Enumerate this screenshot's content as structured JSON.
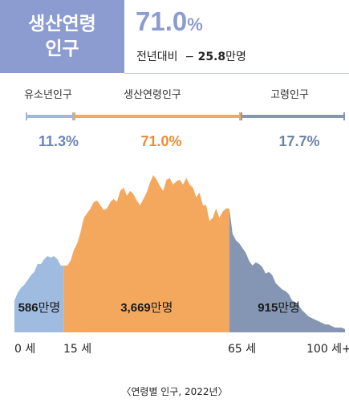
{
  "header": {
    "title": "생산연령\n인구",
    "percent_value": "71.0",
    "percent_unit": "%",
    "change_label": "전년대비",
    "change_sign": "−",
    "change_value": "25.8",
    "change_unit": "만명"
  },
  "segments": [
    {
      "name": "유소년인구",
      "percent": "11.3%",
      "count_num": "586",
      "count_unit": "만명",
      "color": "#9fbbe0"
    },
    {
      "name": "생산연령인구",
      "percent": "71.0%",
      "count_num": "3,669",
      "count_unit": "만명",
      "color": "#f4a85e"
    },
    {
      "name": "고령인구",
      "percent": "17.7%",
      "count_num": "915",
      "count_unit": "만명",
      "color": "#8496b3"
    }
  ],
  "colors": {
    "youth_bar": "#9fb7df",
    "working_bar": "#f4a85e",
    "elderly_bar": "#8497b5",
    "youth_text": "#6a85b8",
    "working_text": "#e98e3a",
    "elderly_text": "#6f83a6",
    "header_accent": "#8d9cd0"
  },
  "axis": {
    "ticks": [
      {
        "age": 0,
        "label": "0 세"
      },
      {
        "age": 15,
        "label": "15 세"
      },
      {
        "age": 65,
        "label": "65 세"
      },
      {
        "age": 100,
        "label": "100 세+"
      }
    ]
  },
  "source_note": "〈연령별 인구, 2022년〉",
  "chart_data": {
    "type": "area",
    "xlabel": "",
    "ylabel": "",
    "x_range": [
      0,
      100
    ],
    "series": [
      {
        "name": "유소년인구",
        "x": [
          0,
          1,
          2,
          3,
          4,
          5,
          6,
          7,
          8,
          9,
          10,
          11,
          12,
          13,
          14,
          15
        ],
        "y": [
          20,
          25,
          28,
          30,
          33,
          36,
          38,
          43,
          43,
          46,
          48,
          47,
          48,
          46,
          42,
          42
        ]
      },
      {
        "name": "생산연령인구",
        "x": [
          15,
          16,
          17,
          18,
          19,
          20,
          21,
          22,
          23,
          24,
          25,
          26,
          27,
          28,
          29,
          30,
          31,
          32,
          33,
          34,
          35,
          36,
          37,
          38,
          39,
          40,
          41,
          42,
          43,
          44,
          45,
          46,
          47,
          48,
          49,
          50,
          51,
          52,
          53,
          54,
          55,
          56,
          57,
          58,
          59,
          60,
          61,
          62,
          63,
          64,
          65
        ],
        "y": [
          42,
          42,
          45,
          52,
          56,
          63,
          72,
          75,
          78,
          82,
          83,
          80,
          77,
          78,
          82,
          84,
          82,
          89,
          91,
          86,
          89,
          87,
          83,
          80,
          84,
          88,
          94,
          99,
          96,
          92,
          89,
          96,
          97,
          93,
          95,
          96,
          93,
          97,
          93,
          91,
          85,
          88,
          80,
          80,
          70,
          72,
          78,
          72,
          76,
          78,
          78
        ]
      },
      {
        "name": "고령인구",
        "x": [
          65,
          66,
          67,
          68,
          69,
          70,
          71,
          72,
          73,
          74,
          75,
          76,
          77,
          78,
          79,
          80,
          81,
          82,
          83,
          84,
          85,
          86,
          87,
          88,
          89,
          90,
          91,
          92,
          93,
          94,
          95,
          96,
          97,
          98,
          99,
          100
        ],
        "y": [
          78,
          62,
          58,
          56,
          53,
          50,
          45,
          42,
          44,
          43,
          41,
          37,
          38,
          36,
          31,
          29,
          27,
          26,
          24,
          20,
          19,
          17,
          14,
          12,
          10,
          9,
          8,
          7,
          6,
          5,
          5,
          4,
          3,
          3,
          3,
          2
        ]
      }
    ]
  }
}
